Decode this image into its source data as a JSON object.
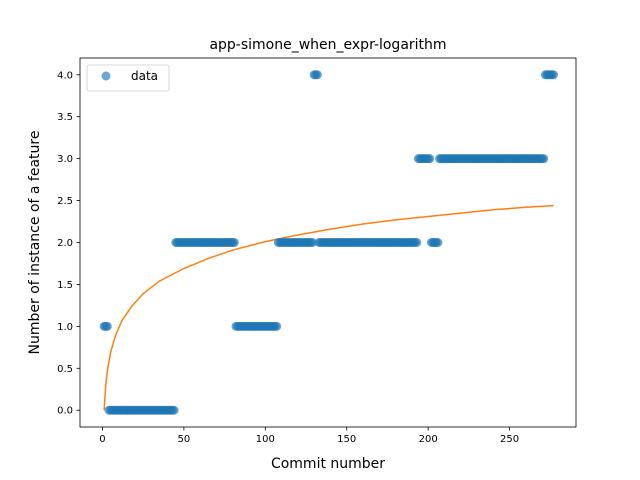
{
  "chart_data": {
    "type": "scatter",
    "title": "app-simone_when_expr-logarithm",
    "xlabel": "Commit number",
    "ylabel": "Number of instance of a feature",
    "xlim": [
      -13.8,
      290.8
    ],
    "ylim": [
      -0.2,
      4.2
    ],
    "xticks": [
      0,
      50,
      100,
      150,
      200,
      250
    ],
    "yticks": [
      0.0,
      0.5,
      1.0,
      1.5,
      2.0,
      2.5,
      3.0,
      3.5,
      4.0
    ],
    "ytick_labels": [
      "0.0",
      "0.5",
      "1.0",
      "1.5",
      "2.0",
      "2.5",
      "3.0",
      "3.5",
      "4.0"
    ],
    "legend": {
      "position": "top-left",
      "entries": [
        "data"
      ]
    },
    "grid": false,
    "colors": {
      "data": "#1f77b4",
      "fit": "#ff7f0e"
    },
    "data_segments": [
      {
        "x_start": 1,
        "x_end": 3,
        "y": 1
      },
      {
        "x_start": 4,
        "x_end": 44,
        "y": 0
      },
      {
        "x_start": 45,
        "x_end": 81,
        "y": 2
      },
      {
        "x_start": 82,
        "x_end": 107,
        "y": 1
      },
      {
        "x_start": 108,
        "x_end": 129,
        "y": 2
      },
      {
        "x_start": 130,
        "x_end": 132,
        "y": 4
      },
      {
        "x_start": 133,
        "x_end": 193,
        "y": 2
      },
      {
        "x_start": 194,
        "x_end": 201,
        "y": 3
      },
      {
        "x_start": 202,
        "x_end": 206,
        "y": 2
      },
      {
        "x_start": 207,
        "x_end": 271,
        "y": 3
      },
      {
        "x_start": 272,
        "x_end": 277,
        "y": 4
      }
    ],
    "fit_curve": {
      "points": [
        [
          1,
          0.0
        ],
        [
          2,
          0.3
        ],
        [
          3,
          0.47
        ],
        [
          5,
          0.69
        ],
        [
          8,
          0.89
        ],
        [
          12,
          1.07
        ],
        [
          18,
          1.24
        ],
        [
          25,
          1.39
        ],
        [
          35,
          1.54
        ],
        [
          50,
          1.69
        ],
        [
          65,
          1.81
        ],
        [
          80,
          1.91
        ],
        [
          100,
          2.01
        ],
        [
          120,
          2.09
        ],
        [
          140,
          2.16
        ],
        [
          160,
          2.22
        ],
        [
          180,
          2.27
        ],
        [
          200,
          2.31
        ],
        [
          220,
          2.35
        ],
        [
          240,
          2.39
        ],
        [
          260,
          2.42
        ],
        [
          277,
          2.44
        ]
      ]
    }
  }
}
